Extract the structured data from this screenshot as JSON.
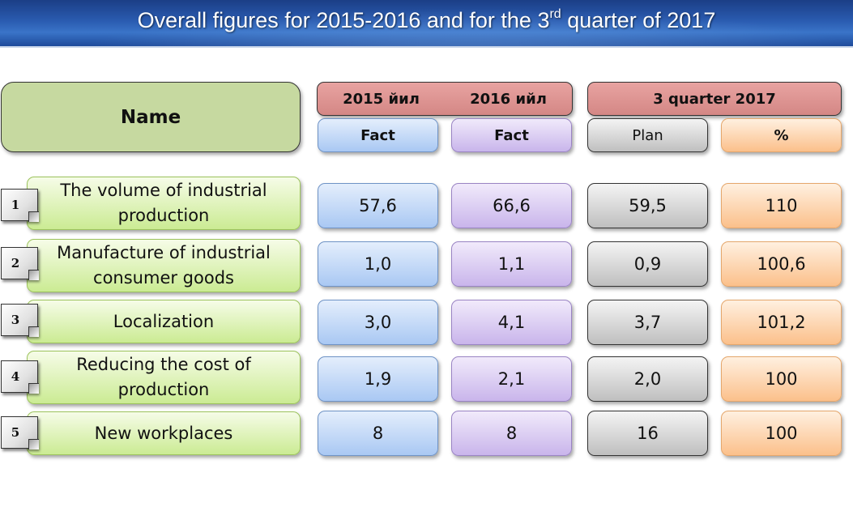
{
  "title": {
    "main": "Overall figures for 2015-2016 and for the 3",
    "sup": "rd",
    "tail": " quarter of 2017"
  },
  "header": {
    "name": "Name",
    "year1": "2015 йил",
    "year2": "2016 ийл",
    "quarter": "3 quarter 2017",
    "fact1": "Fact",
    "fact2": "Fact",
    "plan": "Plan",
    "percent": "%"
  },
  "rows": [
    {
      "num": "1",
      "label": "The volume of industrial production",
      "v2015": "57,6",
      "v2016": "66,6",
      "plan": "59,5",
      "pct": "110"
    },
    {
      "num": "2",
      "label": "Manufacture of industrial consumer goods",
      "v2015": "1,0",
      "v2016": "1,1",
      "plan": "0,9",
      "pct": "100,6"
    },
    {
      "num": "3",
      "label": "Localization",
      "v2015": "3,0",
      "v2016": "4,1",
      "plan": "3,7",
      "pct": "101,2"
    },
    {
      "num": "4",
      "label": "Reducing the cost of production",
      "v2015": "1,9",
      "v2016": "2,1",
      "plan": "2,0",
      "pct": "100"
    },
    {
      "num": "5",
      "label": "New workplaces",
      "v2015": "8",
      "v2016": "8",
      "plan": "16",
      "pct": "100"
    }
  ],
  "colors": {
    "header_red": "#d48785",
    "name_green": "#c6d9a0",
    "fact_blue": "#a9c8f3",
    "fact_purple": "#c9b5eb",
    "plan_grey": "#bfbfbf",
    "pct_orange": "#fbc08b",
    "title_blue": "#2a5bb0"
  }
}
